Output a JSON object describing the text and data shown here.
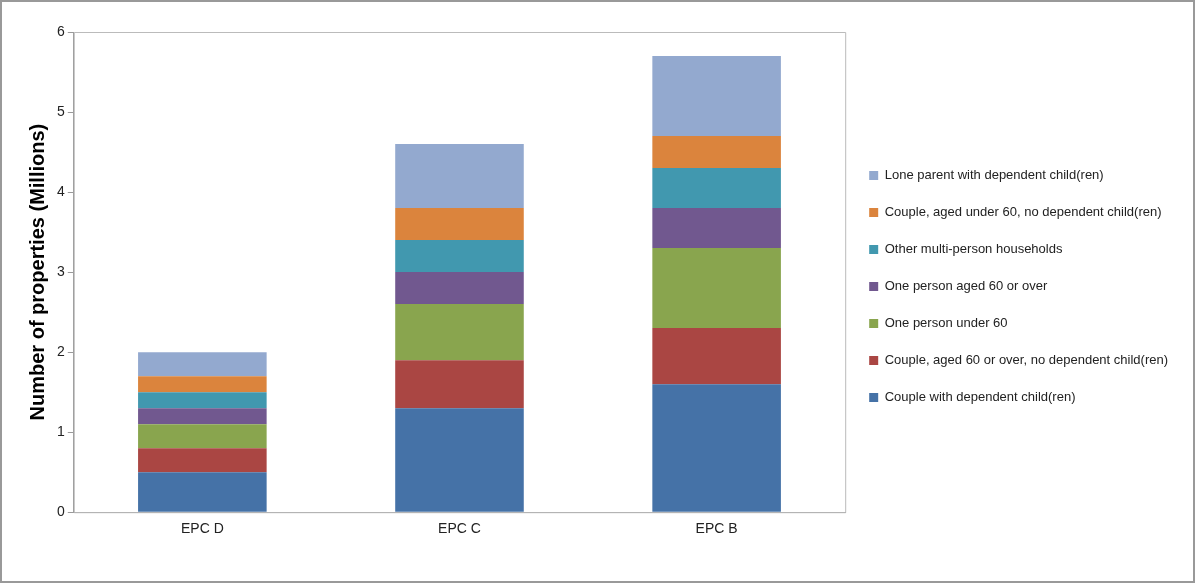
{
  "chart_data": {
    "type": "bar",
    "stacked": true,
    "ylabel": "Number of properties (Millions)",
    "categories": [
      "EPC D",
      "EPC C",
      "EPC B"
    ],
    "series": [
      {
        "name": "Couple with dependent child(ren)",
        "color": "#4572a7",
        "values": [
          0.5,
          1.3,
          1.6
        ]
      },
      {
        "name": "Couple, aged 60 or over, no dependent child(ren)",
        "color": "#aa4643",
        "values": [
          0.3,
          0.6,
          0.7
        ]
      },
      {
        "name": "One person under 60",
        "color": "#89a54e",
        "values": [
          0.3,
          0.7,
          1.0
        ]
      },
      {
        "name": "One person aged 60 or over",
        "color": "#71588f",
        "values": [
          0.2,
          0.4,
          0.5
        ]
      },
      {
        "name": "Other multi-person households",
        "color": "#4198af",
        "values": [
          0.2,
          0.4,
          0.5
        ]
      },
      {
        "name": "Couple, aged under 60, no dependent child(ren)",
        "color": "#db843d",
        "values": [
          0.2,
          0.4,
          0.4
        ]
      },
      {
        "name": "Lone parent with dependent child(ren)",
        "color": "#93a9cf",
        "values": [
          0.3,
          0.8,
          1.0
        ]
      }
    ],
    "ylim": [
      0,
      6
    ],
    "yticks": [
      0,
      1,
      2,
      3,
      4,
      5,
      6
    ],
    "grid": false,
    "legend": "right"
  }
}
